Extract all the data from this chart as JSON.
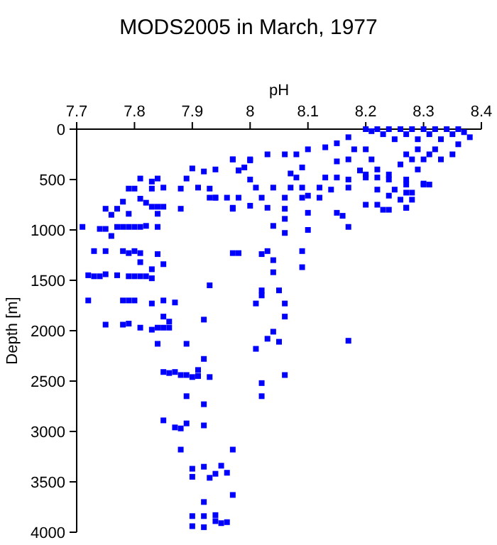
{
  "chart_data": {
    "type": "scatter",
    "title": "MODS2005 in March, 1977",
    "xlabel": "pH",
    "ylabel": "Depth [m]",
    "xlim": [
      7.7,
      8.4
    ],
    "xticks": [
      7.7,
      7.8,
      7.9,
      8,
      8.1,
      8.2,
      8.3,
      8.4
    ],
    "ylim": [
      4000,
      0
    ],
    "yticks": [
      0,
      500,
      1000,
      1500,
      2000,
      2500,
      3000,
      3500,
      4000
    ],
    "grid": false,
    "marker": "square",
    "series": [
      {
        "color": "#0000ff",
        "x": [
          8.2,
          8.21,
          8.22,
          8.23,
          8.24,
          8.25,
          8.26,
          8.27,
          8.28,
          8.29,
          8.3,
          8.31,
          8.32,
          8.33,
          8.34,
          8.35,
          8.36,
          8.37,
          8.38,
          8.36,
          8.35,
          8.27,
          8.28,
          8.29,
          8.3,
          8.31,
          8.32,
          8.33,
          8.29,
          8.26,
          8.24,
          8.22,
          8.2,
          8.21,
          8.2,
          8.22,
          8.25,
          8.27,
          8.28,
          8.3,
          8.31,
          8.26,
          8.22,
          8.2,
          8.24,
          8.27,
          7.97,
          8.0,
          8.03,
          8.06,
          8.08,
          8.1,
          8.13,
          8.15,
          8.17,
          8.18,
          8.17,
          8.15,
          7.94,
          7.98,
          7.99,
          8.0,
          8.07,
          8.09,
          8.08,
          8.13,
          8.15,
          8.17,
          8.19,
          8.2,
          8.22,
          8.24,
          8.27,
          8.3,
          8.01,
          8.04,
          8.07,
          8.09,
          8.12,
          8.14,
          8.17,
          7.94,
          7.96,
          7.98,
          8.02,
          8.06,
          8.09,
          8.12,
          8.1,
          7.97,
          8.0,
          8.03,
          8.06,
          8.1,
          8.15,
          8.16,
          8.23,
          8.27,
          8.24,
          8.27,
          8.28,
          8.04,
          8.06,
          8.06,
          8.1,
          8.17,
          7.98,
          8.02,
          8.03,
          8.04,
          8.09,
          8.04,
          8.09,
          8.02,
          8.02,
          8.05,
          8.01,
          8.06,
          7.71,
          7.73,
          7.74,
          7.75,
          7.75,
          7.76,
          7.75,
          7.77,
          7.78,
          7.77,
          7.76,
          7.78,
          7.79,
          7.8,
          7.79,
          7.79,
          7.78,
          7.8,
          7.81,
          7.82,
          7.84,
          7.81,
          7.81,
          7.82,
          7.83,
          7.84,
          7.83,
          7.83,
          7.84,
          7.85,
          7.84,
          7.85,
          7.79,
          7.8,
          7.81,
          7.81,
          7.84,
          7.83,
          7.85,
          7.72,
          7.73,
          7.74,
          7.75,
          7.77,
          7.79,
          7.8,
          7.81,
          7.82,
          7.83,
          7.72,
          7.78,
          7.79,
          7.8,
          7.83,
          7.85,
          7.87,
          7.88,
          7.89,
          7.88,
          7.9,
          7.91,
          7.92,
          7.93,
          7.93,
          7.94,
          7.97,
          7.97,
          7.98,
          8.0,
          7.97,
          7.93,
          7.75,
          7.78,
          7.79,
          7.81,
          7.83,
          7.84,
          7.85,
          7.86,
          7.85,
          7.86,
          7.92,
          7.84,
          7.89,
          7.92,
          7.85,
          7.86,
          7.87,
          7.88,
          7.89,
          7.9,
          7.91,
          7.91,
          7.93,
          7.89,
          7.92,
          7.85,
          7.87,
          7.88,
          7.89,
          7.92,
          7.88,
          7.97,
          7.9,
          7.92,
          7.95,
          7.9,
          7.93,
          7.94,
          7.96,
          7.97,
          7.92,
          7.9,
          7.92,
          7.94,
          7.94,
          7.95,
          7.96,
          7.9,
          7.92,
          8.06,
          8.04,
          8.03,
          8.05,
          8.01,
          8.06,
          8.02,
          8.02,
          8.17
        ],
        "values": [
          0,
          20,
          0,
          50,
          0,
          100,
          0,
          50,
          0,
          100,
          0,
          50,
          0,
          100,
          0,
          50,
          0,
          30,
          80,
          150,
          250,
          250,
          300,
          200,
          300,
          250,
          200,
          300,
          400,
          350,
          450,
          400,
          200,
          300,
          450,
          600,
          600,
          550,
          700,
          550,
          550,
          700,
          750,
          750,
          800,
          780,
          300,
          300,
          250,
          250,
          250,
          200,
          180,
          140,
          80,
          200,
          300,
          320,
          400,
          410,
          380,
          500,
          440,
          380,
          480,
          480,
          480,
          500,
          410,
          480,
          480,
          500,
          500,
          540,
          580,
          580,
          580,
          580,
          580,
          600,
          580,
          680,
          680,
          680,
          680,
          680,
          680,
          680,
          660,
          780,
          760,
          780,
          790,
          830,
          830,
          860,
          800,
          780,
          660,
          630,
          630,
          960,
          890,
          1030,
          1000,
          970,
          1230,
          1240,
          1210,
          1300,
          1210,
          1420,
          1370,
          1600,
          1650,
          1600,
          1730,
          1730,
          970,
          1210,
          990,
          990,
          790,
          850,
          1210,
          970,
          970,
          790,
          1060,
          1210,
          970,
          970,
          840,
          590,
          720,
          590,
          970,
          960,
          970,
          490,
          690,
          730,
          590,
          490,
          520,
          770,
          770,
          770,
          840,
          580,
          1230,
          1210,
          1230,
          1320,
          1240,
          1390,
          1340,
          1450,
          1460,
          1460,
          1440,
          1450,
          1460,
          1460,
          1460,
          1460,
          1480,
          1700,
          1700,
          1700,
          1700,
          1730,
          1700,
          1720,
          590,
          490,
          790,
          390,
          580,
          420,
          590,
          680,
          680,
          300,
          790,
          410,
          310,
          1230,
          1550,
          1940,
          1940,
          1930,
          1970,
          1990,
          1970,
          1970,
          1970,
          1860,
          1910,
          1890,
          2130,
          2130,
          2280,
          2410,
          2420,
          2410,
          2440,
          2440,
          2460,
          2390,
          2450,
          2460,
          2650,
          2730,
          2890,
          2960,
          2970,
          2920,
          2940,
          3180,
          3180,
          3370,
          3350,
          3340,
          3450,
          3460,
          3420,
          3410,
          3630,
          3700,
          3840,
          3840,
          3830,
          3890,
          3910,
          3900,
          3940,
          3950,
          1860,
          2010,
          2080,
          2110,
          2180,
          2440,
          2520,
          2650,
          2100
        ]
      }
    ]
  }
}
